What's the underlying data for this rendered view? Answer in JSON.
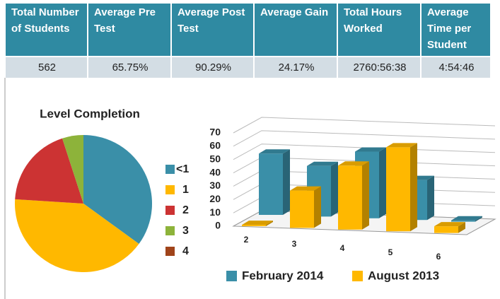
{
  "table": {
    "headers": [
      "Total Number of Students",
      "Average Pre Test",
      "Average Post Test",
      "Average Gain",
      "Total Hours Worked",
      "Average Time per Student"
    ],
    "rows": [
      [
        "562",
        "65.75%",
        "90.29%",
        "24.17%",
        "2760:56:38",
        "4:54:46"
      ]
    ]
  },
  "chart_data": [
    {
      "type": "pie",
      "title": "Level Completion",
      "categories": [
        "<1",
        "1",
        "2",
        "3",
        "4"
      ],
      "values": [
        35,
        41,
        19,
        5,
        0
      ],
      "colors": [
        "#3a8fa8",
        "#ffb800",
        "#cc3333",
        "#8db33a",
        "#a0441a"
      ]
    },
    {
      "type": "bar3d",
      "categories": [
        "2",
        "3",
        "4",
        "5",
        "6"
      ],
      "ylim": [
        0,
        70
      ],
      "yticks": [
        0,
        10,
        20,
        30,
        40,
        50,
        60,
        70
      ],
      "grid": true,
      "legend": "bottom",
      "series": [
        {
          "name": "February 2014",
          "color": "#3a8fa8",
          "values": [
            46,
            38,
            50,
            30,
            1
          ]
        },
        {
          "name": "August 2013",
          "color": "#ffb800",
          "values": [
            1,
            28,
            48,
            63,
            5
          ]
        }
      ]
    }
  ]
}
